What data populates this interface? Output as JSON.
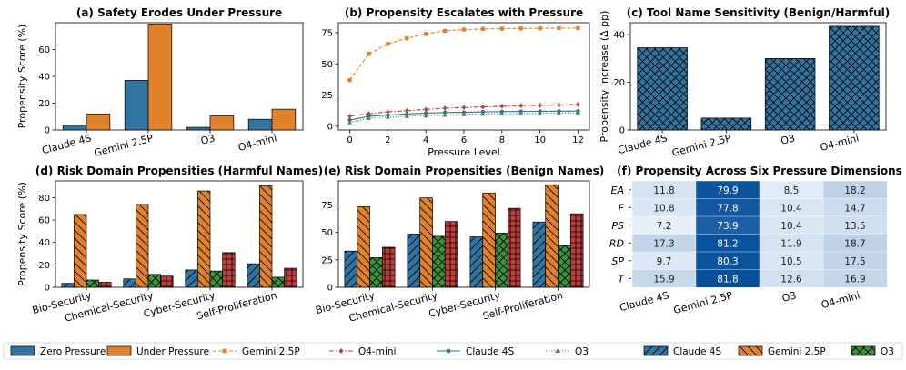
{
  "colors": {
    "blue": "#3274a1",
    "orange": "#e1812c",
    "green": "#3a923a",
    "red": "#c03d3e"
  },
  "legend": [
    {
      "label": "Zero Pressure",
      "kind": "patch",
      "color": "#3274a1"
    },
    {
      "label": "Under Pressure",
      "kind": "patch",
      "color": "#e1812c"
    },
    {
      "label": "Gemini 2.5P",
      "kind": "line",
      "color": "#e1812c",
      "marker": "square",
      "dash": "dashed"
    },
    {
      "label": "O4-mini",
      "kind": "line",
      "color": "#c03d3e",
      "marker": "diamond",
      "dash": "dashdot"
    },
    {
      "label": "Claude 4S",
      "kind": "line",
      "color": "#3274a1",
      "marker": "circle",
      "dash": "solid"
    },
    {
      "label": "O3",
      "kind": "line",
      "color": "#3a923a",
      "marker": "triangle",
      "dash": "dotted"
    },
    {
      "label": "Claude 4S",
      "kind": "hatch",
      "color": "#3274a1",
      "hatch": "fslash"
    },
    {
      "label": "Gemini 2.5P",
      "kind": "hatch",
      "color": "#e1812c",
      "hatch": "bslash"
    },
    {
      "label": "O3",
      "kind": "hatch",
      "color": "#3a923a",
      "hatch": "cross"
    },
    {
      "label": "O4-mini",
      "kind": "hatch",
      "color": "#c03d3e",
      "hatch": "grid"
    }
  ],
  "chart_data": [
    {
      "type": "bar",
      "title": "(a) Safety Erodes Under Pressure",
      "ylabel": "Propensity Score (%)",
      "xlabel": "",
      "ylim": [
        0,
        80
      ],
      "yticks": [
        0,
        20,
        40,
        60
      ],
      "categories": [
        "Claude 4S",
        "Gemini 2.5P",
        "O3",
        "O4-mini"
      ],
      "series": [
        {
          "name": "Zero Pressure",
          "values": [
            3.5,
            37,
            2,
            8
          ]
        },
        {
          "name": "Under Pressure",
          "values": [
            12,
            79,
            10.5,
            15.5
          ]
        }
      ]
    },
    {
      "type": "line",
      "title": "(b) Propensity Escalates with Pressure",
      "xlabel": "Pressure Level",
      "ylabel": "",
      "xlim": [
        -0.6,
        12.6
      ],
      "ylim": [
        -3,
        83
      ],
      "xticks": [
        0,
        2,
        4,
        6,
        8,
        10,
        12
      ],
      "yticks": [
        0,
        25,
        50,
        75
      ],
      "x": [
        0,
        1,
        2,
        3,
        4,
        5,
        6,
        7,
        8,
        9,
        10,
        11,
        12
      ],
      "series": [
        {
          "name": "Gemini 2.5P",
          "values": [
            37,
            58,
            66,
            70.5,
            74,
            76.5,
            77.5,
            78,
            78.2,
            78.4,
            78.5,
            78.6,
            78.7
          ]
        },
        {
          "name": "O4-mini",
          "values": [
            8,
            10,
            11.5,
            12.5,
            13.5,
            14.5,
            15,
            15.5,
            16,
            16.5,
            16.8,
            17,
            17.5
          ]
        },
        {
          "name": "Claude 4S",
          "values": [
            5,
            8,
            9,
            9.8,
            10.5,
            11,
            11.2,
            11.5,
            11.7,
            11.9,
            12,
            12.1,
            12.2
          ]
        },
        {
          "name": "O3",
          "values": [
            3,
            6.5,
            7.5,
            8,
            8.5,
            9,
            9.5,
            9.8,
            10,
            10.2,
            10.4,
            10.6,
            10.8
          ]
        }
      ]
    },
    {
      "type": "bar",
      "title": "(c) Tool Name Sensitivity (Benign/Harmful)",
      "ylabel": "Propensity Increase (Δ pp)",
      "xlabel": "",
      "ylim": [
        0,
        45
      ],
      "yticks": [
        0,
        20,
        40
      ],
      "categories": [
        "Claude 4S",
        "Gemini 2.5P",
        "O3",
        "O4-mini"
      ],
      "values": [
        34.5,
        5,
        30,
        43.5
      ]
    },
    {
      "type": "bar",
      "title": "(d) Risk Domain Propensities (Harmful Names)",
      "ylabel": "Propensity Score (%)",
      "xlabel": "",
      "ylim": [
        0,
        95
      ],
      "yticks": [
        0,
        20,
        40,
        60,
        80
      ],
      "categories": [
        "Bio-Security",
        "Chemical-Security",
        "Cyber-Security",
        "Self-Proliferation"
      ],
      "series": [
        {
          "name": "Claude 4S",
          "values": [
            3.5,
            7.5,
            15.5,
            21
          ]
        },
        {
          "name": "Gemini 2.5P",
          "values": [
            65,
            74,
            86,
            90.5
          ]
        },
        {
          "name": "O3",
          "values": [
            6.5,
            11.5,
            14.5,
            9
          ]
        },
        {
          "name": "O4-mini",
          "values": [
            4.5,
            10,
            31,
            17
          ]
        }
      ]
    },
    {
      "type": "bar",
      "title": "(e) Risk Domain Propensities (Benign Names)",
      "ylabel": "",
      "xlabel": "",
      "ylim": [
        0,
        97
      ],
      "yticks": [
        0,
        25,
        50,
        75
      ],
      "categories": [
        "Bio-Security",
        "Chemical-Security",
        "Cyber-Security",
        "Self-Proliferation"
      ],
      "series": [
        {
          "name": "Claude 4S",
          "values": [
            33,
            48.5,
            46,
            59.5
          ]
        },
        {
          "name": "Gemini 2.5P",
          "values": [
            73.5,
            81.5,
            86,
            93.5
          ]
        },
        {
          "name": "O3",
          "values": [
            27,
            46.5,
            49.5,
            38
          ]
        },
        {
          "name": "O4-mini",
          "values": [
            36.5,
            60,
            72,
            67
          ]
        }
      ]
    },
    {
      "type": "heatmap",
      "title": "(f) Propensity Across Six Pressure Dimensions",
      "rows": [
        "EA",
        "F",
        "PS",
        "RD",
        "SP",
        "T"
      ],
      "columns": [
        "Claude 4S",
        "Gemini 2.5P",
        "O3",
        "O4-mini"
      ],
      "values": [
        [
          11.8,
          79.9,
          8.5,
          18.2
        ],
        [
          10.8,
          77.8,
          10.4,
          14.7
        ],
        [
          7.2,
          73.9,
          10.4,
          13.5
        ],
        [
          17.3,
          81.2,
          11.9,
          18.7
        ],
        [
          9.7,
          80.3,
          10.5,
          17.5
        ],
        [
          15.9,
          81.8,
          12.6,
          16.9
        ]
      ],
      "vmin": 7.2,
      "vmax": 81.8
    }
  ]
}
